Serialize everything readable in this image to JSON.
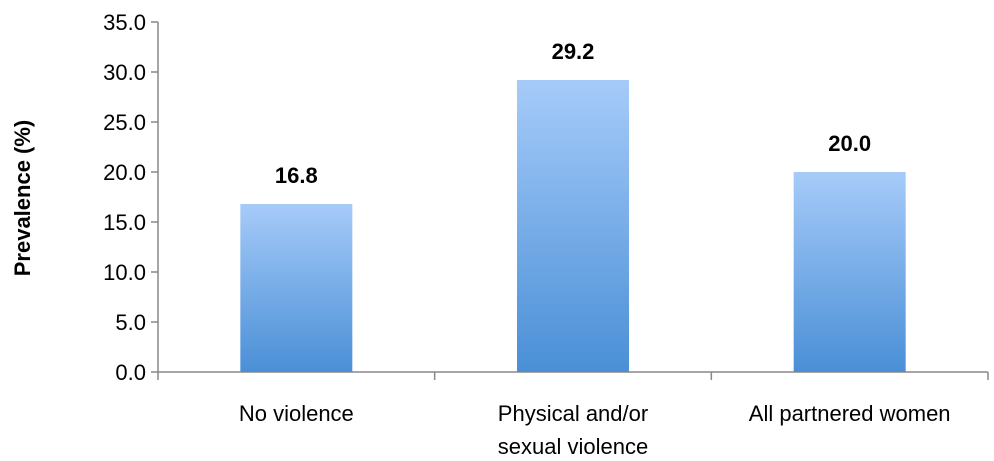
{
  "chart_data": {
    "type": "bar",
    "categories": [
      "No violence",
      "Physical and/or sexual violence",
      "All partnered women"
    ],
    "category_lines": [
      [
        "No violence"
      ],
      [
        "Physical and/or",
        "sexual violence"
      ],
      [
        "All partnered women"
      ]
    ],
    "values": [
      16.8,
      29.2,
      20.0
    ],
    "data_labels": [
      "16.8",
      "29.2",
      "20.0"
    ],
    "title": "",
    "xlabel": "",
    "ylabel": "Prevalence (%)",
    "ylim": [
      0,
      35
    ],
    "yticks": [
      "0.0",
      "5.0",
      "10.0",
      "15.0",
      "20.0",
      "25.0",
      "30.0",
      "35.0"
    ],
    "grid": false,
    "legend": "none",
    "colors": {
      "bar_top": "#a6cbf9",
      "bar_bottom": "#4a8fd6",
      "axis": "#888888"
    }
  }
}
